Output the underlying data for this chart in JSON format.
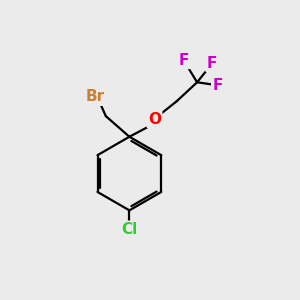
{
  "background_color": "#ebebeb",
  "bond_color": "#000000",
  "atom_colors": {
    "Br": "#cd7f32",
    "O": "#ff0000",
    "F": "#cc00cc",
    "Cl": "#33cc33"
  },
  "figsize": [
    3.0,
    3.0
  ],
  "dpi": 100,
  "bond_lw": 1.6,
  "font_size": 11
}
